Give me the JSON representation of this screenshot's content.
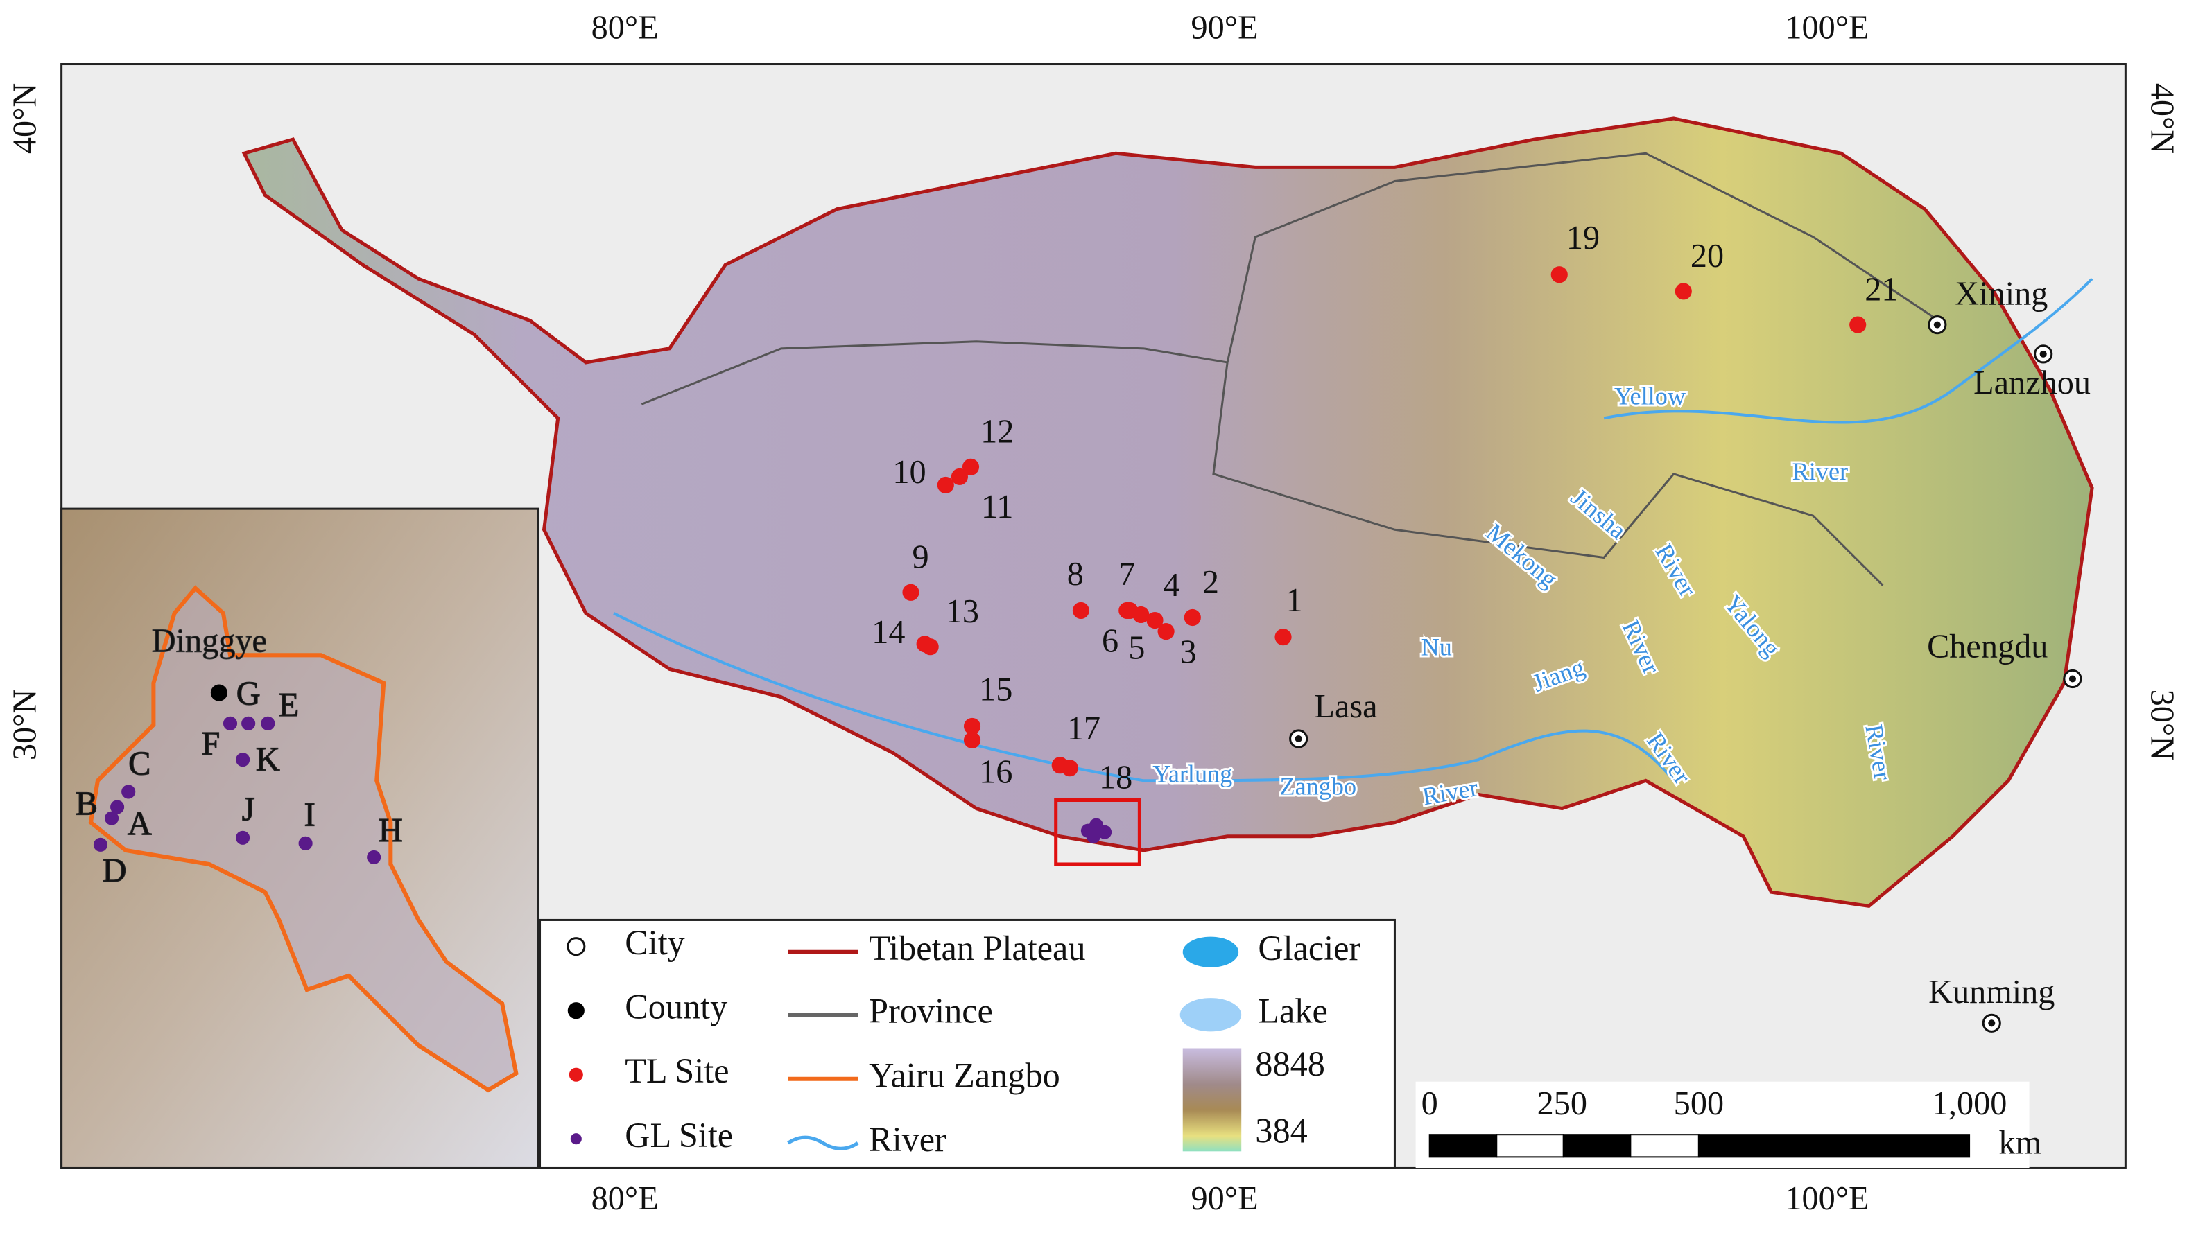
{
  "axes": {
    "lon_labels": [
      "80°E",
      "90°E",
      "100°E"
    ],
    "lat_labels": [
      "40°N",
      "30°N"
    ]
  },
  "cities": [
    "Xining",
    "Lanzhou",
    "Chengdu",
    "Lasa",
    "Kunming"
  ],
  "rivers": [
    "Yellow",
    "River",
    "Jinsha",
    "River",
    "Mekong",
    "River",
    "Yalong",
    "River",
    "Nu",
    "Jiang",
    "River",
    "Yarlung",
    "Zangbo",
    "River"
  ],
  "tl_sites": [
    "1",
    "2",
    "3",
    "4",
    "5",
    "6",
    "7",
    "8",
    "9",
    "10",
    "11",
    "12",
    "13",
    "14",
    "15",
    "16",
    "17",
    "18",
    "19",
    "20",
    "21"
  ],
  "inset": {
    "county": "Dinggye",
    "gl_sites": [
      "A",
      "B",
      "C",
      "D",
      "E",
      "F",
      "G",
      "H",
      "I",
      "J",
      "K"
    ]
  },
  "legend": {
    "items": [
      "City",
      "County",
      "TL Site",
      "GL Site",
      "Tibetan Plateau",
      "Province",
      "Yairu Zangbo",
      "River",
      "Glacier",
      "Lake"
    ],
    "colorbar": [
      "8848",
      "384"
    ]
  },
  "scale_bar": {
    "ticks": [
      "0",
      "250",
      "500",
      "1,000"
    ],
    "unit": "km"
  }
}
